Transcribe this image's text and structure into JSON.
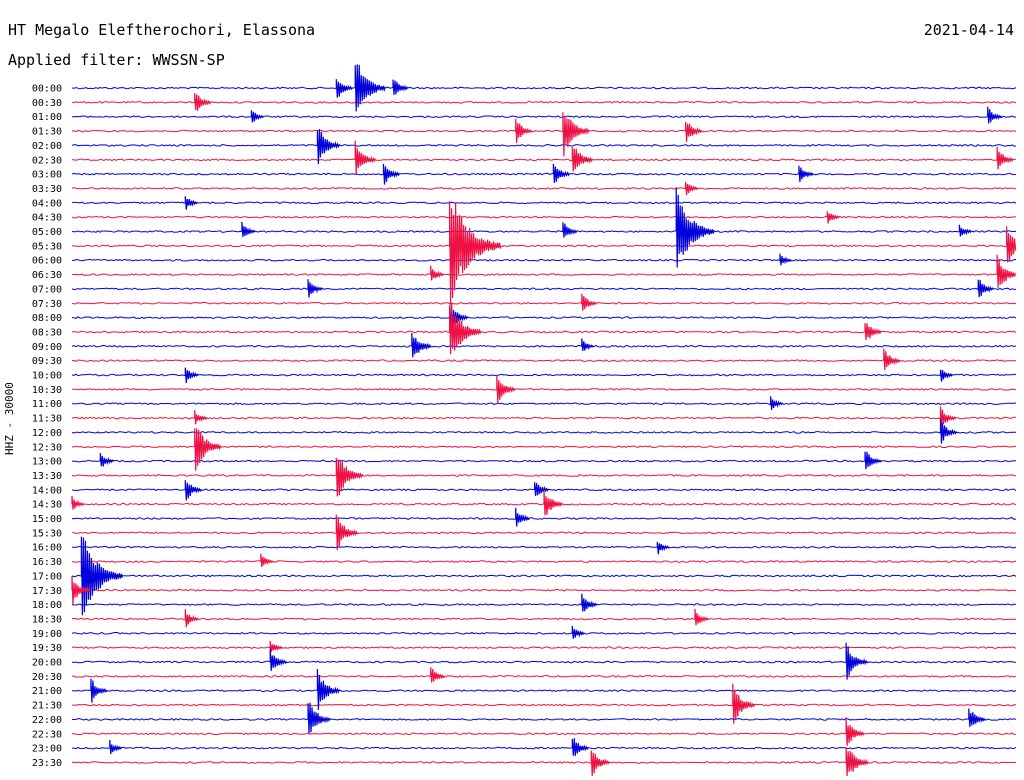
{
  "header": {
    "station": "HT Megalo Eleftherochori, Elassona",
    "date": "2021-04-14",
    "filter": "Applied filter: WWSSN-SP"
  },
  "channel_label": "HHZ - 30000",
  "colors": {
    "trace_a": "#0000dd",
    "trace_b": "#ee1144",
    "background": "#ffffff",
    "text": "#000000"
  },
  "chart_data": {
    "type": "line",
    "title": "HT Megalo Eleftherochori, Elassona",
    "ylabel": "HHZ - 30000",
    "grid": false,
    "trace_interval_minutes": 30,
    "time_labels": [
      "00:00",
      "00:30",
      "01:00",
      "01:30",
      "02:00",
      "02:30",
      "03:00",
      "03:30",
      "04:00",
      "04:30",
      "05:00",
      "05:30",
      "06:00",
      "06:30",
      "07:00",
      "07:30",
      "08:00",
      "08:30",
      "09:00",
      "09:30",
      "10:00",
      "10:30",
      "11:00",
      "11:30",
      "12:00",
      "12:30",
      "13:00",
      "13:30",
      "14:00",
      "14:30",
      "15:00",
      "15:30",
      "16:00",
      "16:30",
      "17:00",
      "17:30",
      "18:00",
      "18:30",
      "19:00",
      "19:30",
      "20:00",
      "20:30",
      "21:00",
      "21:30",
      "22:00",
      "22:30",
      "23:00",
      "23:30"
    ],
    "series_colors": [
      "#0000dd",
      "#ee1144"
    ],
    "events": [
      {
        "row": 0,
        "t": 0.28,
        "amp": 1.0
      },
      {
        "row": 0,
        "t": 0.3,
        "amp": 2.4
      },
      {
        "row": 0,
        "t": 0.34,
        "amp": 0.9
      },
      {
        "row": 1,
        "t": 0.13,
        "amp": 1.0
      },
      {
        "row": 2,
        "t": 0.19,
        "amp": 0.6
      },
      {
        "row": 2,
        "t": 0.97,
        "amp": 0.8
      },
      {
        "row": 3,
        "t": 0.47,
        "amp": 1.0
      },
      {
        "row": 3,
        "t": 0.52,
        "amp": 2.0
      },
      {
        "row": 3,
        "t": 0.65,
        "amp": 1.0
      },
      {
        "row": 4,
        "t": 0.26,
        "amp": 1.6
      },
      {
        "row": 5,
        "t": 0.3,
        "amp": 1.4
      },
      {
        "row": 5,
        "t": 0.53,
        "amp": 1.4
      },
      {
        "row": 5,
        "t": 0.98,
        "amp": 1.0
      },
      {
        "row": 6,
        "t": 0.33,
        "amp": 1.0
      },
      {
        "row": 6,
        "t": 0.51,
        "amp": 1.0
      },
      {
        "row": 6,
        "t": 0.77,
        "amp": 0.8
      },
      {
        "row": 7,
        "t": 0.65,
        "amp": 0.6
      },
      {
        "row": 8,
        "t": 0.12,
        "amp": 0.6
      },
      {
        "row": 9,
        "t": 0.8,
        "amp": 0.6
      },
      {
        "row": 10,
        "t": 0.18,
        "amp": 0.7
      },
      {
        "row": 10,
        "t": 0.52,
        "amp": 0.8
      },
      {
        "row": 10,
        "t": 0.64,
        "amp": 3.2
      },
      {
        "row": 10,
        "t": 0.94,
        "amp": 0.6
      },
      {
        "row": 11,
        "t": 0.4,
        "amp": 4.5
      },
      {
        "row": 11,
        "t": 0.99,
        "amp": 1.6
      },
      {
        "row": 12,
        "t": 0.75,
        "amp": 0.5
      },
      {
        "row": 13,
        "t": 0.38,
        "amp": 0.7
      },
      {
        "row": 13,
        "t": 0.98,
        "amp": 1.5
      },
      {
        "row": 14,
        "t": 0.25,
        "amp": 0.8
      },
      {
        "row": 14,
        "t": 0.96,
        "amp": 0.9
      },
      {
        "row": 15,
        "t": 0.54,
        "amp": 0.8
      },
      {
        "row": 16,
        "t": 0.4,
        "amp": 1.2
      },
      {
        "row": 17,
        "t": 0.4,
        "amp": 2.5
      },
      {
        "row": 17,
        "t": 0.84,
        "amp": 1.0
      },
      {
        "row": 18,
        "t": 0.36,
        "amp": 1.3
      },
      {
        "row": 18,
        "t": 0.54,
        "amp": 0.6
      },
      {
        "row": 19,
        "t": 0.86,
        "amp": 1.0
      },
      {
        "row": 20,
        "t": 0.12,
        "amp": 0.7
      },
      {
        "row": 20,
        "t": 0.92,
        "amp": 0.6
      },
      {
        "row": 21,
        "t": 0.45,
        "amp": 1.2
      },
      {
        "row": 22,
        "t": 0.74,
        "amp": 0.6
      },
      {
        "row": 23,
        "t": 0.13,
        "amp": 0.6
      },
      {
        "row": 23,
        "t": 0.92,
        "amp": 0.9
      },
      {
        "row": 24,
        "t": 0.92,
        "amp": 1.0
      },
      {
        "row": 25,
        "t": 0.13,
        "amp": 2.0
      },
      {
        "row": 26,
        "t": 0.03,
        "amp": 0.7
      },
      {
        "row": 26,
        "t": 0.84,
        "amp": 1.0
      },
      {
        "row": 27,
        "t": 0.28,
        "amp": 2.0
      },
      {
        "row": 28,
        "t": 0.12,
        "amp": 1.0
      },
      {
        "row": 28,
        "t": 0.49,
        "amp": 0.8
      },
      {
        "row": 29,
        "t": 0.0,
        "amp": 0.6
      },
      {
        "row": 29,
        "t": 0.5,
        "amp": 1.2
      },
      {
        "row": 30,
        "t": 0.47,
        "amp": 0.8
      },
      {
        "row": 31,
        "t": 0.28,
        "amp": 1.5
      },
      {
        "row": 32,
        "t": 0.62,
        "amp": 0.6
      },
      {
        "row": 33,
        "t": 0.2,
        "amp": 0.6
      },
      {
        "row": 34,
        "t": 0.01,
        "amp": 3.5
      },
      {
        "row": 35,
        "t": 0.0,
        "amp": 1.2
      },
      {
        "row": 36,
        "t": 0.54,
        "amp": 0.9
      },
      {
        "row": 37,
        "t": 0.12,
        "amp": 0.7
      },
      {
        "row": 37,
        "t": 0.66,
        "amp": 0.7
      },
      {
        "row": 38,
        "t": 0.53,
        "amp": 0.6
      },
      {
        "row": 39,
        "t": 0.21,
        "amp": 0.6
      },
      {
        "row": 40,
        "t": 0.21,
        "amp": 1.0
      },
      {
        "row": 40,
        "t": 0.82,
        "amp": 1.5
      },
      {
        "row": 41,
        "t": 0.38,
        "amp": 0.8
      },
      {
        "row": 42,
        "t": 0.02,
        "amp": 1.0
      },
      {
        "row": 42,
        "t": 0.26,
        "amp": 1.6
      },
      {
        "row": 43,
        "t": 0.7,
        "amp": 1.6
      },
      {
        "row": 44,
        "t": 0.25,
        "amp": 1.6
      },
      {
        "row": 44,
        "t": 0.95,
        "amp": 1.0
      },
      {
        "row": 45,
        "t": 0.82,
        "amp": 1.2
      },
      {
        "row": 46,
        "t": 0.53,
        "amp": 1.0
      },
      {
        "row": 46,
        "t": 0.04,
        "amp": 0.6
      },
      {
        "row": 47,
        "t": 0.55,
        "amp": 1.2
      },
      {
        "row": 47,
        "t": 0.82,
        "amp": 1.6
      }
    ]
  }
}
